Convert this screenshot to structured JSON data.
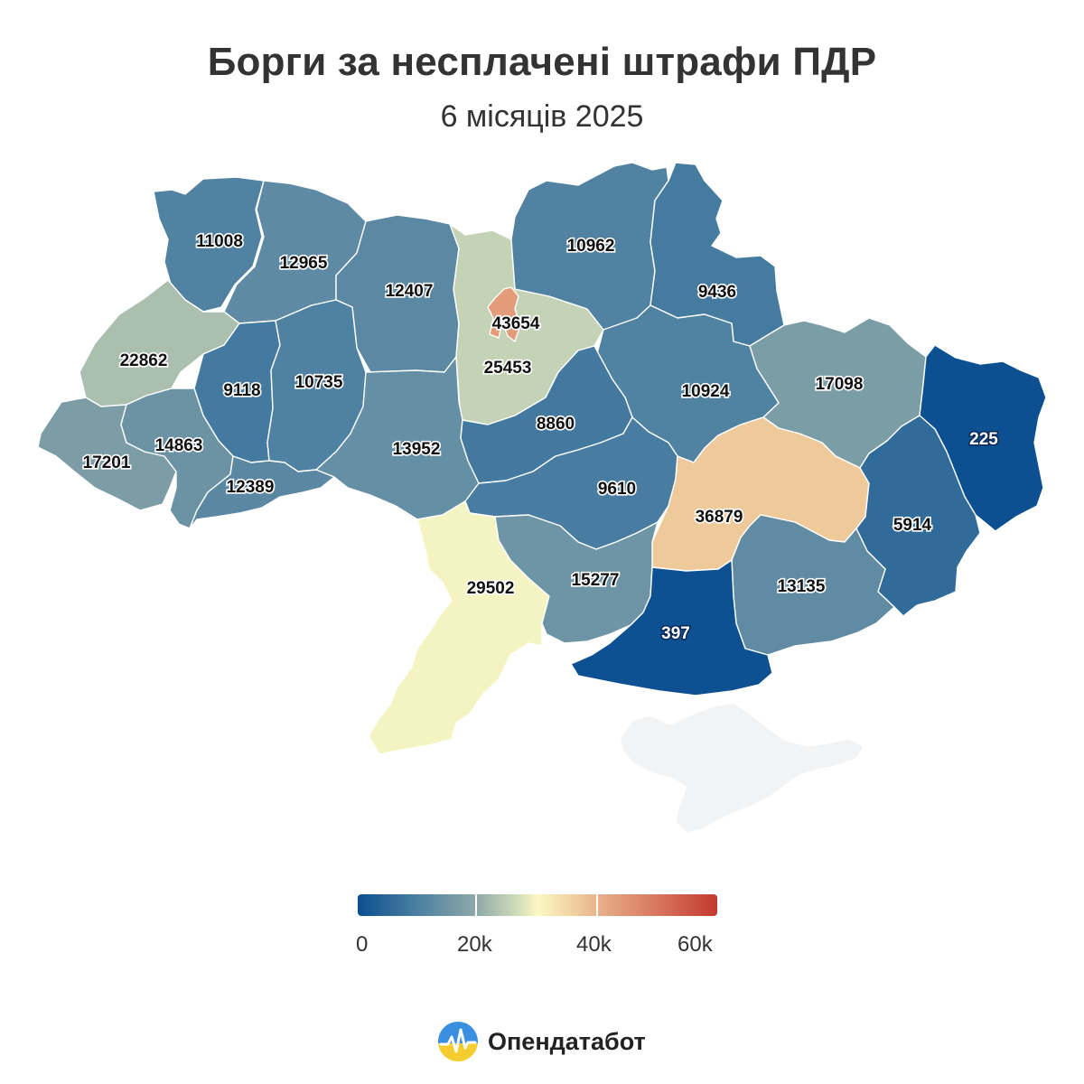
{
  "title": "Борги за несплачені штрафи ПДР",
  "subtitle": "6 місяців 2025",
  "map": {
    "type": "choropleth",
    "regions": [
      {
        "id": "volyn",
        "value": 11008
      },
      {
        "id": "rivne",
        "value": 12965
      },
      {
        "id": "zhytomyr",
        "value": 12407
      },
      {
        "id": "kyiv-oblast",
        "value": 25453
      },
      {
        "id": "kyiv-city",
        "value": 43654
      },
      {
        "id": "chernihiv",
        "value": 10962
      },
      {
        "id": "sumy",
        "value": 9436
      },
      {
        "id": "lviv",
        "value": 22862
      },
      {
        "id": "ternopil",
        "value": 9118
      },
      {
        "id": "khmelnytskyi",
        "value": 10735
      },
      {
        "id": "poltava",
        "value": 10924
      },
      {
        "id": "kharkiv",
        "value": 17098
      },
      {
        "id": "luhansk",
        "value": 225
      },
      {
        "id": "zakarpattia",
        "value": 17201
      },
      {
        "id": "ivano-frankivsk",
        "value": 14863
      },
      {
        "id": "chernivtsi",
        "value": 12389
      },
      {
        "id": "vinnytsia",
        "value": 13952
      },
      {
        "id": "cherkasy",
        "value": 8860
      },
      {
        "id": "kirovohrad",
        "value": 9610
      },
      {
        "id": "dnipropetrovsk",
        "value": 36879
      },
      {
        "id": "donetsk",
        "value": 5914
      },
      {
        "id": "odesa",
        "value": 29502
      },
      {
        "id": "mykolaiv",
        "value": 15277
      },
      {
        "id": "zaporizhzhia",
        "value": 13135
      },
      {
        "id": "kherson",
        "value": 397
      },
      {
        "id": "crimea",
        "value": null
      }
    ],
    "nodata_color": "#f2f3f5"
  },
  "legend": {
    "min": 0,
    "max": 60000,
    "tick_labels": [
      "0",
      "20k",
      "40k",
      "60k"
    ],
    "tick_values": [
      0,
      20000,
      40000,
      60000
    ],
    "colors": [
      "#0b4f91",
      "#4a7ea1",
      "#8fa9a8",
      "#d3dfb9",
      "#fbf8c4",
      "#f2d9a6",
      "#e8b08a",
      "#d9775e",
      "#c23a2f"
    ]
  },
  "brand": {
    "name": "Опендатабот",
    "icon": "opendatabot-logo-icon"
  }
}
